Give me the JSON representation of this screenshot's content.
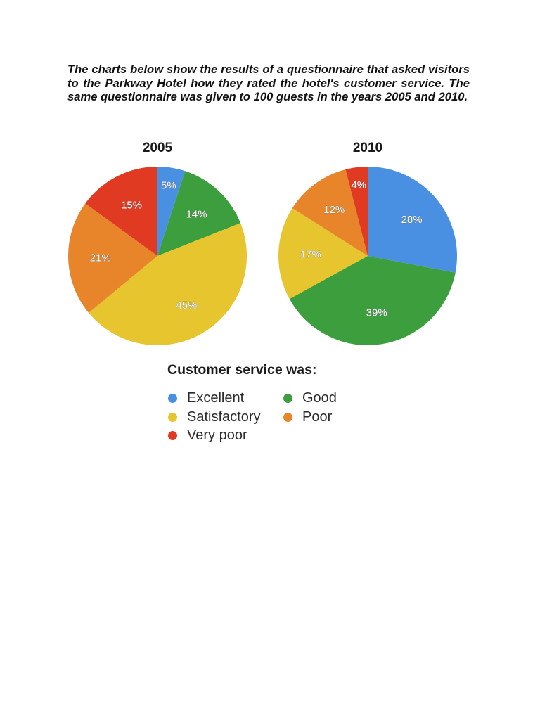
{
  "intro": "The charts below show the results of a questionnaire that asked visitors to the Parkway Hotel how they rated the hotel's customer service. The same questionnaire was given to 100 guests in the years 2005 and 2010.",
  "legend": {
    "title": "Customer service was:",
    "items": [
      {
        "label": "Excellent",
        "color": "#4a90e2"
      },
      {
        "label": "Good",
        "color": "#3d9e3d"
      },
      {
        "label": "Satisfactory",
        "color": "#e6c52e"
      },
      {
        "label": "Poor",
        "color": "#e8852a"
      },
      {
        "label": "Very poor",
        "color": "#e03a22"
      }
    ]
  },
  "chart_data": [
    {
      "type": "pie",
      "title": "2005",
      "categories": [
        "Excellent",
        "Good",
        "Satisfactory",
        "Poor",
        "Very poor"
      ],
      "values": [
        5,
        14,
        45,
        21,
        15
      ],
      "labels": [
        "5%",
        "14%",
        "45%",
        "21%",
        "15%"
      ],
      "colors": [
        "#4a90e2",
        "#3d9e3d",
        "#e6c52e",
        "#e8852a",
        "#e03a22"
      ],
      "unit": "%"
    },
    {
      "type": "pie",
      "title": "2010",
      "categories": [
        "Excellent",
        "Good",
        "Satisfactory",
        "Poor",
        "Very poor"
      ],
      "values": [
        28,
        39,
        17,
        12,
        4
      ],
      "labels": [
        "28%",
        "39%",
        "17%",
        "12%",
        "4%"
      ],
      "colors": [
        "#4a90e2",
        "#3d9e3d",
        "#e6c52e",
        "#e8852a",
        "#e03a22"
      ],
      "unit": "%"
    }
  ]
}
